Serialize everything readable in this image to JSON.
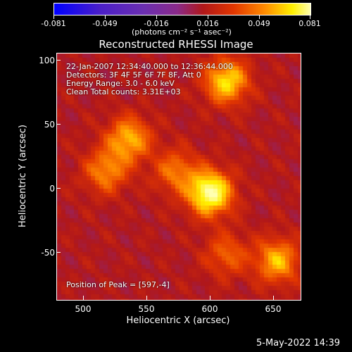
{
  "colorbar": {
    "tick_labels": [
      "-0.081",
      "-0.049",
      "-0.016",
      "0.016",
      "0.049",
      "0.081"
    ],
    "units": "(photons cm⁻² s⁻¹ asec⁻²)",
    "colors": [
      "#0000ff",
      "#4b1fc8",
      "#6b2fb0",
      "#8a2a8a",
      "#b0171a",
      "#e23600",
      "#ff8a00",
      "#fff000",
      "#ffffb0"
    ]
  },
  "title": "Reconstructed RHESSI Image",
  "info": {
    "time": "22-Jan-2007 12:34:40.000 to 12:36:44.000",
    "detectors": "Detectors: 3F 4F 5F 6F 7F 8F, Att 0",
    "energy": "Energy Range: 3.0 - 6.0 keV",
    "clean": "Clean    Total counts: 3.31E+03",
    "peak": "Position of Peak = [597,-4]"
  },
  "axes": {
    "xlabel": "Heliocentric X (arcsec)",
    "ylabel": "Heliocentric Y (arcsec)",
    "xticks": [
      "500",
      "550",
      "600",
      "650"
    ],
    "yticks": [
      "100",
      "50",
      "0",
      "-50"
    ],
    "xlim": [
      478,
      670
    ],
    "ylim": [
      -87,
      105
    ]
  },
  "chart_data": {
    "type": "heatmap",
    "title": "Reconstructed RHESSI Image",
    "xlabel": "Heliocentric X (arcsec)",
    "ylabel": "Heliocentric Y (arcsec)",
    "xlim": [
      478,
      670
    ],
    "ylim": [
      -87,
      105
    ],
    "value_range": [
      -0.081,
      0.081
    ],
    "peak": [
      597,
      -4
    ],
    "sources": [
      {
        "x": 597,
        "y": -2,
        "value": 0.081
      },
      {
        "x": 610,
        "y": 85,
        "value": 0.06
      },
      {
        "x": 533,
        "y": 40,
        "value": 0.05
      },
      {
        "x": 515,
        "y": 15,
        "value": 0.04
      },
      {
        "x": 650,
        "y": -55,
        "value": 0.05
      },
      {
        "x": 570,
        "y": 15,
        "value": 0.035
      },
      {
        "x": 610,
        "y": -50,
        "value": 0.03
      }
    ]
  },
  "timestamp": "5-May-2022 14:39"
}
